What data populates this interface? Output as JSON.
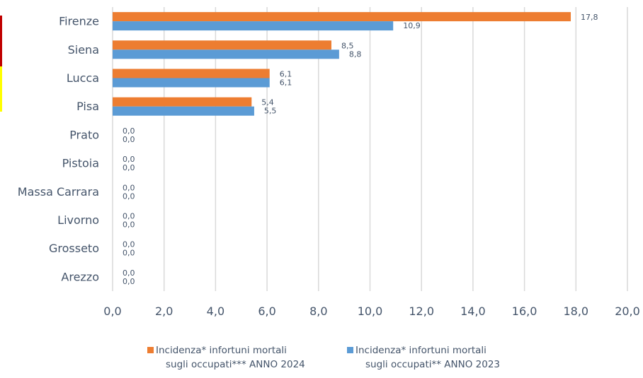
{
  "chart_data": {
    "type": "bar",
    "orientation": "horizontal",
    "categories": [
      "Firenze",
      "Siena",
      "Lucca",
      "Pisa",
      "Prato",
      "Pistoia",
      "Massa Carrara",
      "Livorno",
      "Grosseto",
      "Arezzo"
    ],
    "series": [
      {
        "name": "Incidenza* infortuni mortali sugli occupati*** ANNO 2024",
        "color": "#ed7d31",
        "values": [
          17.8,
          8.5,
          6.1,
          5.4,
          0.0,
          0.0,
          0.0,
          0.0,
          0.0,
          0.0
        ],
        "labels": [
          "17,8",
          "8,5",
          "6,1",
          "5,4",
          "0,0",
          "0,0",
          "0,0",
          "0,0",
          "0,0",
          "0,0"
        ]
      },
      {
        "name": "Incidenza* infortuni mortali sugli occupati** ANNO 2023",
        "color": "#5b9bd5",
        "values": [
          10.9,
          8.8,
          6.1,
          5.5,
          0.0,
          0.0,
          0.0,
          0.0,
          0.0,
          0.0
        ],
        "labels": [
          "10,9",
          "8,8",
          "6,1",
          "5,5",
          "0,0",
          "0,0",
          "0,0",
          "0,0",
          "0,0",
          "0,0"
        ]
      }
    ],
    "xlim": [
      0,
      20
    ],
    "xticks": [
      "0,0",
      "2,0",
      "4,0",
      "6,0",
      "8,0",
      "10,0",
      "12,0",
      "14,0",
      "16,0",
      "18,0",
      "20,0"
    ],
    "grid": true,
    "legend_position": "bottom",
    "gridline_color": "#d9d9d9"
  },
  "legend": {
    "item_2024_line1": "Incidenza* infortuni mortali",
    "item_2024_line2": "sugli occupati*** ANNO 2024",
    "item_2023_line1": "Incidenza* infortuni mortali",
    "item_2023_line2": "sugli occupati** ANNO 2023"
  },
  "edge_marks": [
    {
      "color": "#c00000"
    },
    {
      "color": "#ffff00"
    }
  ]
}
